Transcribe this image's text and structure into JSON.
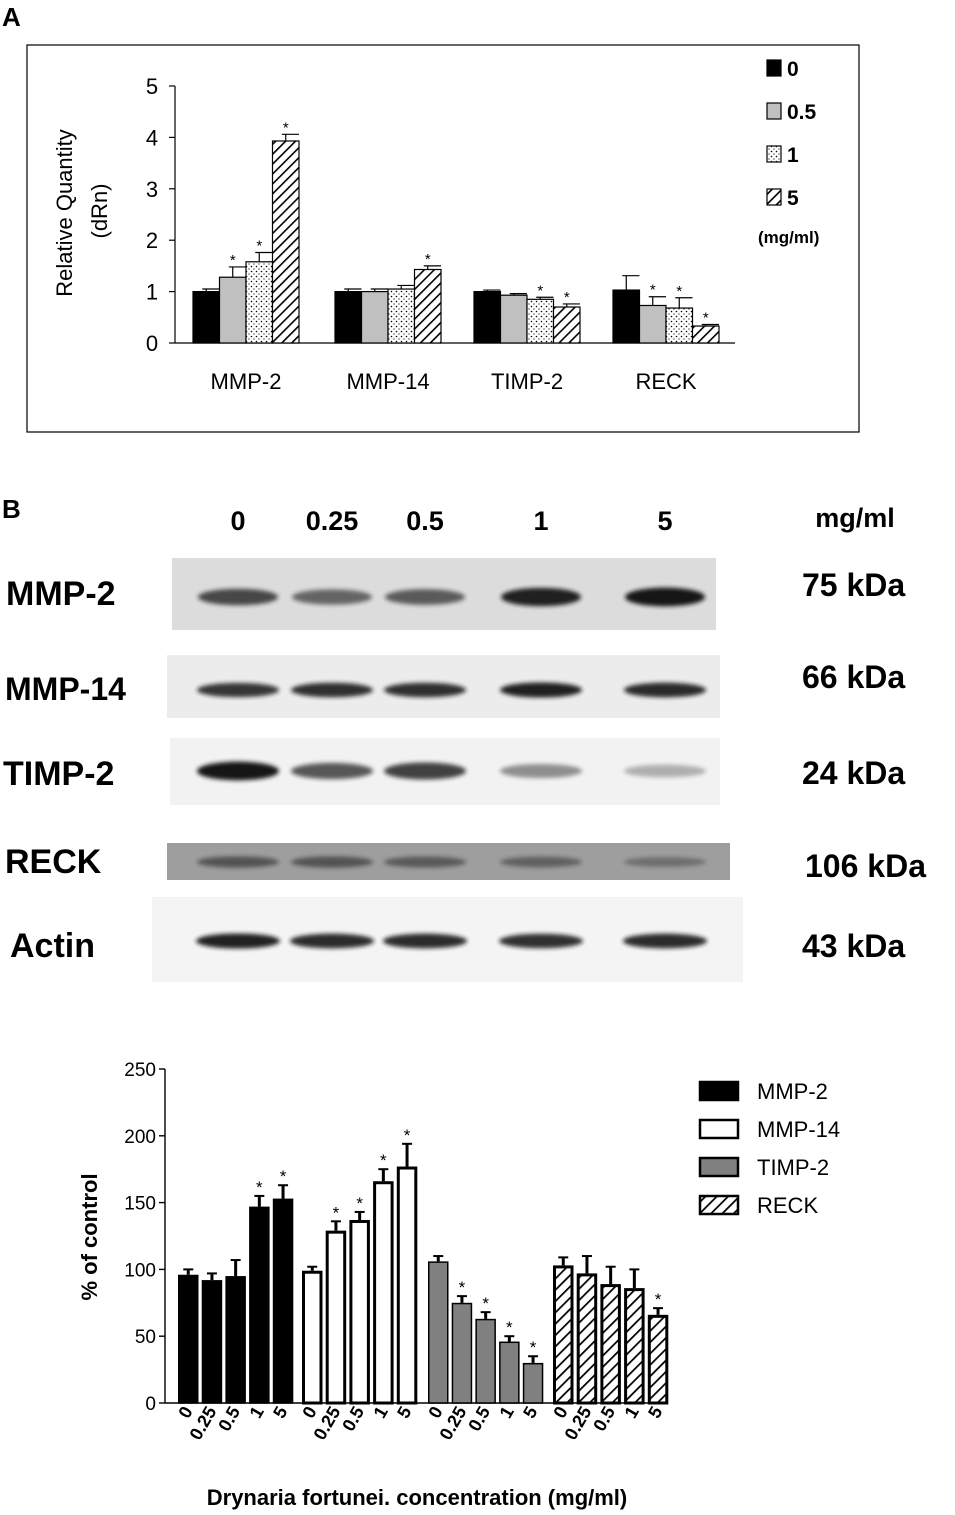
{
  "panel_labels": {
    "a": "A",
    "b": "B"
  },
  "colors": {
    "control": "#000000",
    "light_gray": "#c0c0c0",
    "mid_gray": "#808080",
    "blot_dark": "#141414"
  },
  "chart_data": [
    {
      "type": "bar",
      "panel": "A",
      "title": "",
      "xlabel": "",
      "ylabel_line1": "Relative Quantity",
      "ylabel_line2": "(dRn)",
      "ylim": [
        0,
        5
      ],
      "yticks": [
        "0",
        "1",
        "2",
        "3",
        "4",
        "5"
      ],
      "grid": false,
      "legend_position": "top-right",
      "legend_unit": "(mg/ml)",
      "categories": [
        "MMP-2",
        "MMP-14",
        "TIMP-2",
        "RECK"
      ],
      "series": [
        {
          "name": "0",
          "pattern": "solid-black",
          "values": [
            1.0,
            1.0,
            1.0,
            1.03
          ],
          "errors": [
            0.05,
            0.05,
            0.03,
            0.28
          ],
          "sig": [
            false,
            false,
            false,
            false
          ]
        },
        {
          "name": "0.5",
          "pattern": "gray",
          "values": [
            1.28,
            1.0,
            0.93,
            0.73
          ],
          "errors": [
            0.2,
            0.05,
            0.03,
            0.17
          ],
          "sig": [
            true,
            false,
            false,
            true
          ]
        },
        {
          "name": "1",
          "pattern": "dotted",
          "values": [
            1.58,
            1.05,
            0.85,
            0.68
          ],
          "errors": [
            0.18,
            0.07,
            0.04,
            0.2
          ],
          "sig": [
            true,
            false,
            true,
            true
          ]
        },
        {
          "name": "5",
          "pattern": "hatched",
          "values": [
            3.93,
            1.43,
            0.7,
            0.33
          ],
          "errors": [
            0.13,
            0.07,
            0.06,
            0.03
          ],
          "sig": [
            true,
            true,
            true,
            true
          ]
        }
      ],
      "sig_marker": "*"
    },
    {
      "type": "bar",
      "panel": "B",
      "title": "",
      "xlabel": "Drynaria fortunei. concentration (mg/ml)",
      "ylabel": "% of control",
      "ylim": [
        0,
        250
      ],
      "yticks": [
        "0",
        "50",
        "100",
        "150",
        "200",
        "250"
      ],
      "grid": false,
      "legend_position": "top-right",
      "dose_labels": [
        "0",
        "0.25",
        "0.5",
        "1",
        "5"
      ],
      "series": [
        {
          "name": "MMP-2",
          "pattern": "solid-black",
          "values": [
            96,
            92,
            95,
            147,
            153
          ],
          "errors": [
            4,
            5,
            12,
            8,
            10
          ],
          "sig": [
            false,
            false,
            false,
            true,
            true
          ]
        },
        {
          "name": "MMP-14",
          "pattern": "white",
          "values": [
            99,
            129,
            137,
            166,
            177
          ],
          "errors": [
            3,
            7,
            6,
            9,
            17
          ],
          "sig": [
            false,
            true,
            true,
            true,
            true
          ]
        },
        {
          "name": "TIMP-2",
          "pattern": "gray",
          "values": [
            106,
            75,
            63,
            46,
            30
          ],
          "errors": [
            4,
            5,
            5,
            4,
            5
          ],
          "sig": [
            false,
            true,
            true,
            true,
            true
          ]
        },
        {
          "name": "RECK",
          "pattern": "hatched",
          "values": [
            103,
            97,
            89,
            86,
            66
          ],
          "errors": [
            6,
            13,
            13,
            14,
            5
          ],
          "sig": [
            false,
            false,
            false,
            false,
            true
          ]
        }
      ],
      "sig_marker": "*"
    }
  ],
  "western_blot": {
    "unit": "mg/ml",
    "lanes": [
      "0",
      "0.25",
      "0.5",
      "1",
      "5"
    ],
    "bands": [
      {
        "protein": "MMP-2",
        "size": "75 kDa",
        "intensity": [
          0.75,
          0.6,
          0.65,
          0.95,
          1.0
        ]
      },
      {
        "protein": "MMP-14",
        "size": "66 kDa",
        "intensity": [
          0.85,
          0.88,
          0.88,
          0.95,
          0.9
        ]
      },
      {
        "protein": "TIMP-2",
        "size": "24 kDa",
        "intensity": [
          1.0,
          0.7,
          0.8,
          0.45,
          0.3
        ]
      },
      {
        "protein": "RECK",
        "size": "106 kDa",
        "intensity": [
          0.55,
          0.55,
          0.5,
          0.45,
          0.35
        ]
      },
      {
        "protein": "Actin",
        "size": "43 kDa",
        "intensity": [
          0.95,
          0.9,
          0.9,
          0.88,
          0.9
        ]
      }
    ]
  }
}
